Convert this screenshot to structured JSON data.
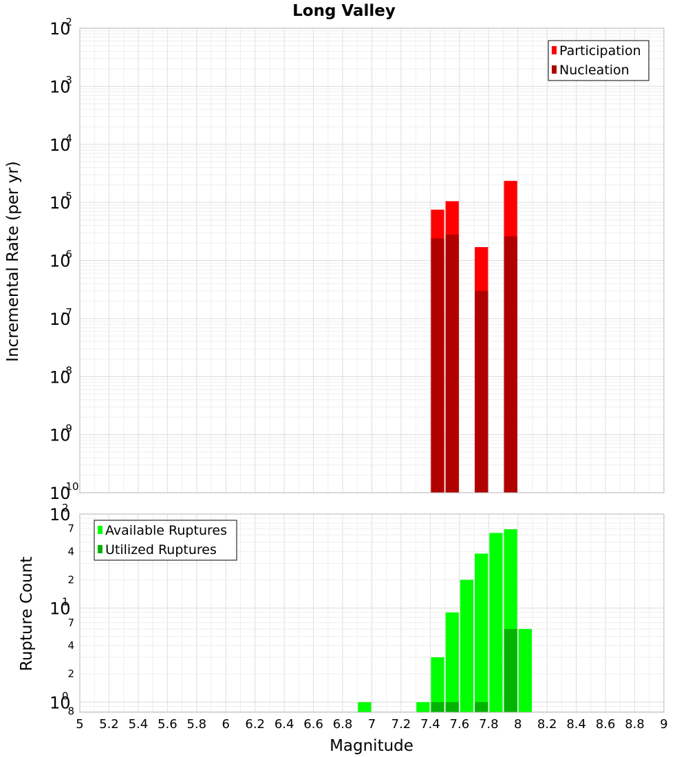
{
  "chart_data": [
    {
      "type": "bar",
      "title": "Long Valley",
      "xlabel": "",
      "ylabel": "Incremental Rate (per yr)",
      "xlim": [
        5,
        9
      ],
      "ylim": [
        1e-10,
        0.01
      ],
      "yscale": "log",
      "bar_width": 0.1,
      "y_ticks": [
        {
          "base": "10",
          "exp": "-2",
          "value": 0.01
        },
        {
          "base": "10",
          "exp": "-3",
          "value": 0.001
        },
        {
          "base": "10",
          "exp": "-4",
          "value": 0.0001
        },
        {
          "base": "10",
          "exp": "-5",
          "value": 1e-05
        },
        {
          "base": "10",
          "exp": "-6",
          "value": 1e-06
        },
        {
          "base": "10",
          "exp": "-7",
          "value": 1e-07
        },
        {
          "base": "10",
          "exp": "-8",
          "value": 1e-08
        },
        {
          "base": "10",
          "exp": "-9",
          "value": 1e-09
        },
        {
          "base": "10",
          "exp": "-10",
          "value": 1e-10
        }
      ],
      "legend_position": "top-right",
      "series": [
        {
          "name": "Participation",
          "color": "#ff0000",
          "x": [
            7.45,
            7.55,
            7.75,
            7.95
          ],
          "values": [
            7.5e-06,
            1.05e-05,
            1.7e-06,
            2.35e-05
          ]
        },
        {
          "name": "Nucleation",
          "color": "#b00000",
          "x": [
            7.45,
            7.55,
            7.75,
            7.95
          ],
          "values": [
            2.4e-06,
            2.8e-06,
            3e-07,
            2.6e-06
          ]
        }
      ]
    },
    {
      "type": "bar",
      "title": "",
      "xlabel": "Magnitude",
      "ylabel": "Rupture Count",
      "xlim": [
        5,
        9
      ],
      "ylim": [
        0.78,
        100
      ],
      "yscale": "log",
      "bar_width": 0.1,
      "x_ticks": [
        "5",
        "5.2",
        "5.4",
        "5.6",
        "5.8",
        "6",
        "6.2",
        "6.4",
        "6.6",
        "6.8",
        "7",
        "7.2",
        "7.4",
        "7.6",
        "7.8",
        "8",
        "8.2",
        "8.4",
        "8.6",
        "8.8",
        "9"
      ],
      "y_ticks": [
        {
          "base": "10",
          "exp": "2",
          "value": 100
        },
        {
          "base": "10",
          "exp": "1",
          "value": 10
        },
        {
          "base": "10",
          "exp": "0",
          "value": 1
        }
      ],
      "y_minor_ticks": [
        {
          "label": "7",
          "value": 70
        },
        {
          "label": "4",
          "value": 40
        },
        {
          "label": "2",
          "value": 20
        },
        {
          "label": "7",
          "value": 7
        },
        {
          "label": "4",
          "value": 4
        },
        {
          "label": "2",
          "value": 2
        },
        {
          "label": "8",
          "value": 0.8
        }
      ],
      "legend_position": "top-left",
      "series": [
        {
          "name": "Available Ruptures",
          "color": "#00ff00",
          "x": [
            6.95,
            7.35,
            7.45,
            7.55,
            7.65,
            7.75,
            7.85,
            7.95,
            8.05
          ],
          "values": [
            1,
            1,
            3,
            9,
            20,
            38,
            63,
            69,
            6
          ]
        },
        {
          "name": "Utilized Ruptures",
          "color": "#00b400",
          "x": [
            7.45,
            7.55,
            7.75,
            7.95
          ],
          "values": [
            1,
            1,
            1,
            6
          ]
        }
      ]
    }
  ]
}
